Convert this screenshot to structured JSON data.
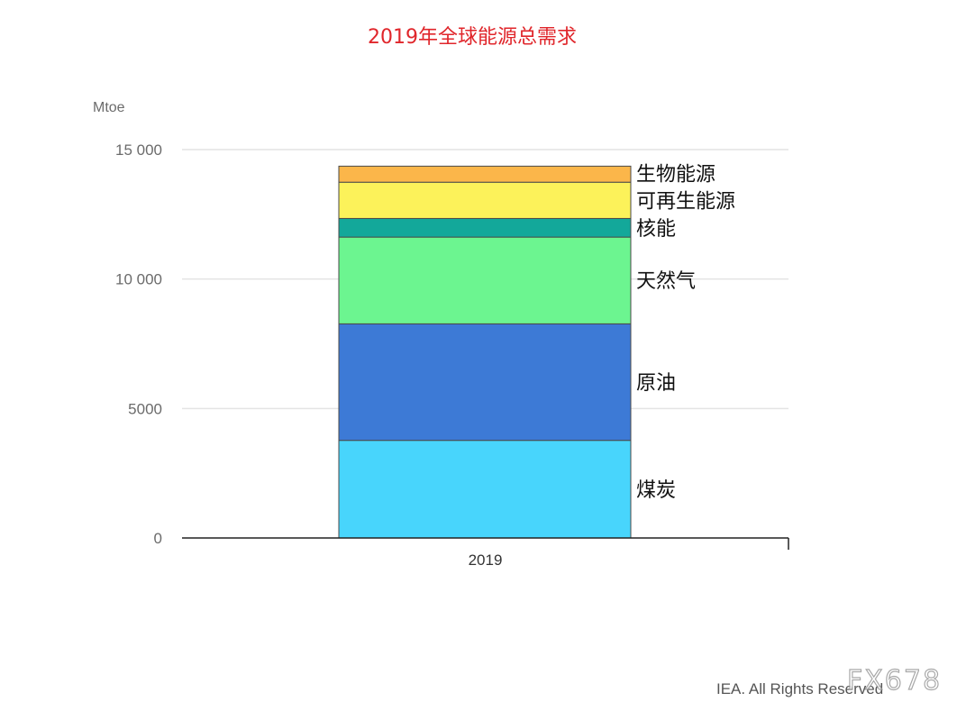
{
  "chart_data": {
    "type": "bar",
    "stacked": true,
    "title": "2019年全球能源总需求",
    "ylabel": "Mtoe",
    "xlabel": "",
    "categories": [
      "2019"
    ],
    "ylim": [
      0,
      15000
    ],
    "yticks": [
      {
        "value": 0,
        "label": "0"
      },
      {
        "value": 5000,
        "label": "5000"
      },
      {
        "value": 10000,
        "label": "10 000"
      },
      {
        "value": 15000,
        "label": "15 000"
      }
    ],
    "grid": true,
    "series": [
      {
        "name": "煤炭",
        "values": [
          3770
        ],
        "color": "#48d5fc"
      },
      {
        "name": "原油",
        "values": [
          4500
        ],
        "color": "#3d7ad6"
      },
      {
        "name": "天然气",
        "values": [
          3350
        ],
        "color": "#6cf590"
      },
      {
        "name": "核能",
        "values": [
          720
        ],
        "color": "#13a89a"
      },
      {
        "name": "可再生能源",
        "values": [
          1400
        ],
        "color": "#fcf25a"
      },
      {
        "name": "生物能源",
        "values": [
          620
        ],
        "color": "#fbb64a"
      }
    ]
  },
  "credit": "IEA. All Rights Reserved",
  "watermark": "FX678"
}
